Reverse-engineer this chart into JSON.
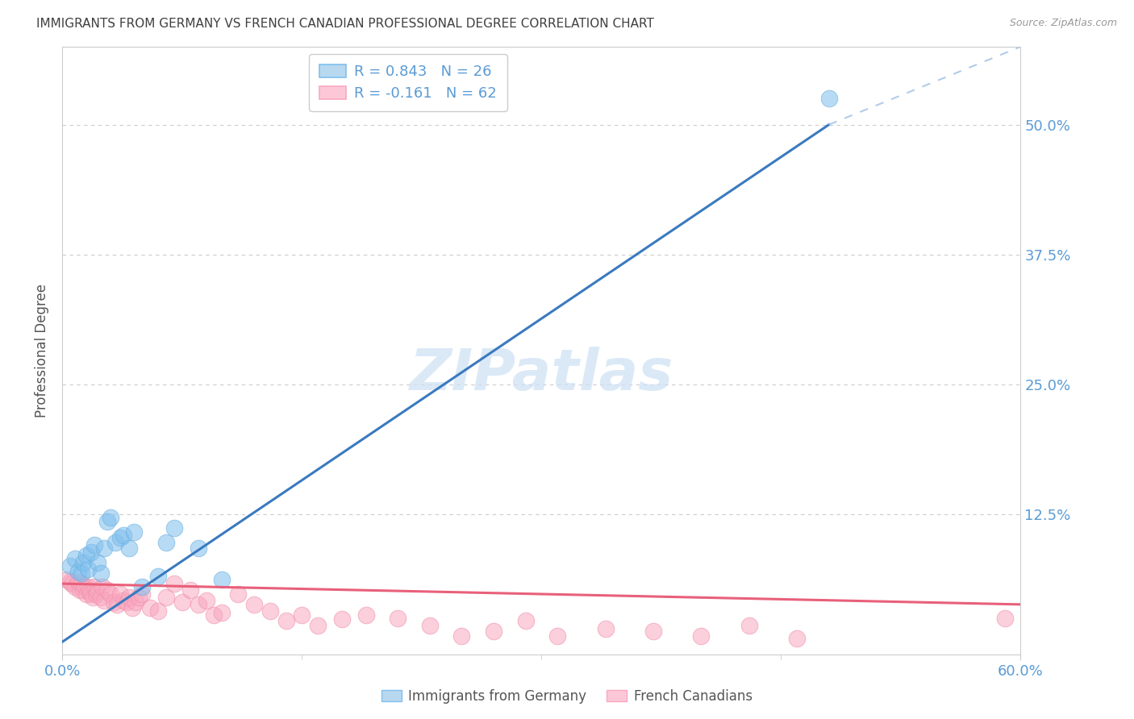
{
  "title": "IMMIGRANTS FROM GERMANY VS FRENCH CANADIAN PROFESSIONAL DEGREE CORRELATION CHART",
  "source": "Source: ZipAtlas.com",
  "ylabel": "Professional Degree",
  "right_yticks": [
    "50.0%",
    "37.5%",
    "25.0%",
    "12.5%"
  ],
  "right_ytick_vals": [
    0.5,
    0.375,
    0.25,
    0.125
  ],
  "xlim": [
    0.0,
    0.6
  ],
  "ylim": [
    -0.01,
    0.575
  ],
  "legend1_label": "R = 0.843   N = 26",
  "legend2_label": "R = -0.161   N = 62",
  "legend1_color": "#7fbfee",
  "legend2_color": "#f9a8c0",
  "blue_line_color": "#3a7abf",
  "pink_line_color": "#e8607a",
  "dashed_line_color": "#b0cce8",
  "background_color": "#ffffff",
  "grid_color": "#cccccc",
  "axis_color": "#cccccc",
  "title_color": "#404040",
  "right_axis_color": "#5b9bd5",
  "watermark": "ZIPatlas",
  "blue_scatter_x": [
    0.005,
    0.008,
    0.01,
    0.012,
    0.013,
    0.015,
    0.016,
    0.018,
    0.02,
    0.022,
    0.024,
    0.026,
    0.028,
    0.03,
    0.033,
    0.036,
    0.038,
    0.042,
    0.045,
    0.05,
    0.06,
    0.065,
    0.07,
    0.085,
    0.1,
    0.48
  ],
  "blue_scatter_y": [
    0.075,
    0.082,
    0.07,
    0.068,
    0.078,
    0.085,
    0.072,
    0.088,
    0.095,
    0.078,
    0.068,
    0.092,
    0.118,
    0.122,
    0.098,
    0.102,
    0.105,
    0.092,
    0.108,
    0.055,
    0.065,
    0.098,
    0.112,
    0.092,
    0.062,
    0.525
  ],
  "pink_scatter_x": [
    0.003,
    0.005,
    0.006,
    0.008,
    0.01,
    0.011,
    0.012,
    0.013,
    0.014,
    0.015,
    0.016,
    0.017,
    0.018,
    0.019,
    0.02,
    0.021,
    0.022,
    0.024,
    0.025,
    0.026,
    0.028,
    0.03,
    0.032,
    0.034,
    0.036,
    0.038,
    0.04,
    0.042,
    0.044,
    0.046,
    0.048,
    0.05,
    0.055,
    0.06,
    0.065,
    0.07,
    0.075,
    0.08,
    0.085,
    0.09,
    0.095,
    0.1,
    0.11,
    0.12,
    0.13,
    0.14,
    0.15,
    0.16,
    0.175,
    0.19,
    0.21,
    0.23,
    0.25,
    0.27,
    0.29,
    0.31,
    0.34,
    0.37,
    0.4,
    0.43,
    0.46,
    0.59
  ],
  "pink_scatter_y": [
    0.062,
    0.06,
    0.058,
    0.055,
    0.06,
    0.052,
    0.058,
    0.052,
    0.055,
    0.048,
    0.055,
    0.05,
    0.048,
    0.045,
    0.055,
    0.048,
    0.05,
    0.045,
    0.055,
    0.042,
    0.052,
    0.048,
    0.04,
    0.038,
    0.048,
    0.042,
    0.04,
    0.045,
    0.035,
    0.04,
    0.045,
    0.048,
    0.035,
    0.032,
    0.045,
    0.058,
    0.04,
    0.052,
    0.038,
    0.042,
    0.028,
    0.03,
    0.048,
    0.038,
    0.032,
    0.022,
    0.028,
    0.018,
    0.024,
    0.028,
    0.025,
    0.018,
    0.008,
    0.012,
    0.022,
    0.008,
    0.015,
    0.012,
    0.008,
    0.018,
    0.005,
    0.025
  ],
  "blue_line_x": [
    0.0,
    0.48
  ],
  "blue_line_y": [
    0.002,
    0.5
  ],
  "dashed_line_x": [
    0.48,
    0.6
  ],
  "dashed_line_y": [
    0.5,
    0.575
  ],
  "pink_line_x": [
    0.0,
    0.6
  ],
  "pink_line_y": [
    0.058,
    0.038
  ]
}
